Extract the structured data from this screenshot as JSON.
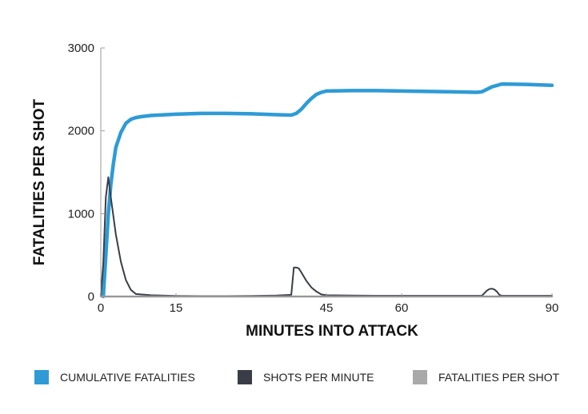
{
  "chart_data": {
    "type": "line",
    "title": "",
    "xlabel": "MINUTES INTO ATTACK",
    "ylabel": "FATALITIES PER SHOT",
    "xlim": [
      0,
      90
    ],
    "ylim": [
      0,
      3000
    ],
    "x_ticks": [
      {
        "value": 0,
        "label": "0"
      },
      {
        "value": 15,
        "label": "15"
      },
      {
        "value": 45,
        "label": "45"
      },
      {
        "value": 60,
        "label": "60"
      },
      {
        "value": 90,
        "label": "90"
      }
    ],
    "y_ticks": [
      {
        "value": 0,
        "label": "0"
      },
      {
        "value": 1000,
        "label": "1000"
      },
      {
        "value": 2000,
        "label": "2000"
      },
      {
        "value": 3000,
        "label": "3000"
      }
    ],
    "grid": false,
    "legend_position": "bottom",
    "series": [
      {
        "name": "CUMULATIVE FATALITIES",
        "color": "#2e9bd6",
        "x": [
          0.5,
          1,
          1.5,
          2,
          2.5,
          3,
          4,
          5,
          6,
          7,
          8,
          10,
          15,
          20,
          25,
          30,
          35,
          38,
          39,
          40,
          41,
          42,
          43,
          44,
          45,
          50,
          55,
          60,
          65,
          70,
          75,
          76,
          78,
          80,
          85,
          90
        ],
        "values": [
          0,
          500,
          1000,
          1350,
          1600,
          1800,
          1980,
          2090,
          2140,
          2160,
          2170,
          2185,
          2200,
          2210,
          2210,
          2205,
          2195,
          2190,
          2210,
          2260,
          2330,
          2390,
          2440,
          2465,
          2480,
          2485,
          2485,
          2480,
          2475,
          2470,
          2465,
          2470,
          2530,
          2565,
          2560,
          2550
        ]
      },
      {
        "name": "SHOTS PER MINUTE",
        "color": "#3a3d47",
        "x": [
          0,
          0.5,
          1,
          1.5,
          2,
          3,
          4,
          5,
          6,
          7,
          10,
          15,
          20,
          25,
          30,
          35,
          38,
          38.5,
          39,
          39.5,
          40,
          40.5,
          41,
          42,
          43,
          44,
          45,
          50,
          55,
          60,
          65,
          70,
          75,
          76,
          76.5,
          77,
          77.5,
          78,
          78.5,
          79,
          79.5,
          80,
          85,
          90
        ],
        "values": [
          0,
          400,
          1200,
          1440,
          1200,
          750,
          420,
          200,
          80,
          30,
          15,
          8,
          5,
          5,
          8,
          12,
          20,
          350,
          350,
          340,
          290,
          240,
          190,
          110,
          60,
          25,
          15,
          12,
          10,
          10,
          10,
          10,
          10,
          10,
          40,
          70,
          90,
          95,
          85,
          60,
          20,
          10,
          10,
          10
        ]
      },
      {
        "name": "FATALITIES PER SHOT",
        "color": "#a9a9a9",
        "x": [
          0,
          90
        ],
        "values": [
          0,
          0
        ]
      }
    ]
  }
}
